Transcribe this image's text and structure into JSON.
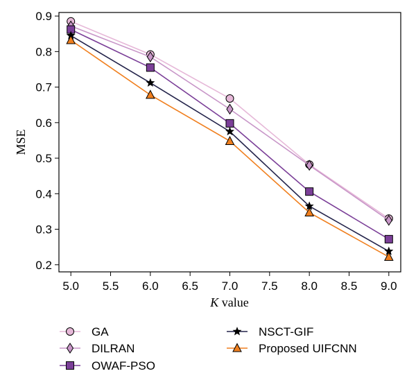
{
  "chart_data": {
    "type": "line",
    "xlabel_italic": "K",
    "xlabel_rest": " value",
    "ylabel": "MSE",
    "xlim": [
      4.85,
      9.15
    ],
    "ylim": [
      0.18,
      0.91
    ],
    "xticks": [
      "5.0",
      "5.5",
      "6.0",
      "6.5",
      "7.0",
      "7.5",
      "8.0",
      "8.5",
      "9.0"
    ],
    "yticks": [
      "0.2",
      "0.3",
      "0.4",
      "0.5",
      "0.6",
      "0.7",
      "0.8",
      "0.9"
    ],
    "x": [
      5,
      6,
      7,
      8,
      9
    ],
    "legend_position": "bottom",
    "series": [
      {
        "name": "GA",
        "values": [
          0.885,
          0.792,
          0.668,
          0.482,
          0.33
        ],
        "color": "#e6b8d8",
        "marker": "circle"
      },
      {
        "name": "DILRAN",
        "values": [
          0.872,
          0.785,
          0.638,
          0.48,
          0.325
        ],
        "color": "#c896c8",
        "marker": "diamond"
      },
      {
        "name": "OWAF-PSO",
        "values": [
          0.862,
          0.755,
          0.598,
          0.406,
          0.272
        ],
        "color": "#7b3f98",
        "marker": "square"
      },
      {
        "name": "NSCT-GIF",
        "values": [
          0.845,
          0.712,
          0.575,
          0.365,
          0.238
        ],
        "color": "#23234a",
        "marker": "star"
      },
      {
        "name": "Proposed UIFCNN",
        "values": [
          0.832,
          0.678,
          0.548,
          0.347,
          0.222
        ],
        "color": "#f07f1e",
        "marker": "triangle"
      }
    ]
  }
}
